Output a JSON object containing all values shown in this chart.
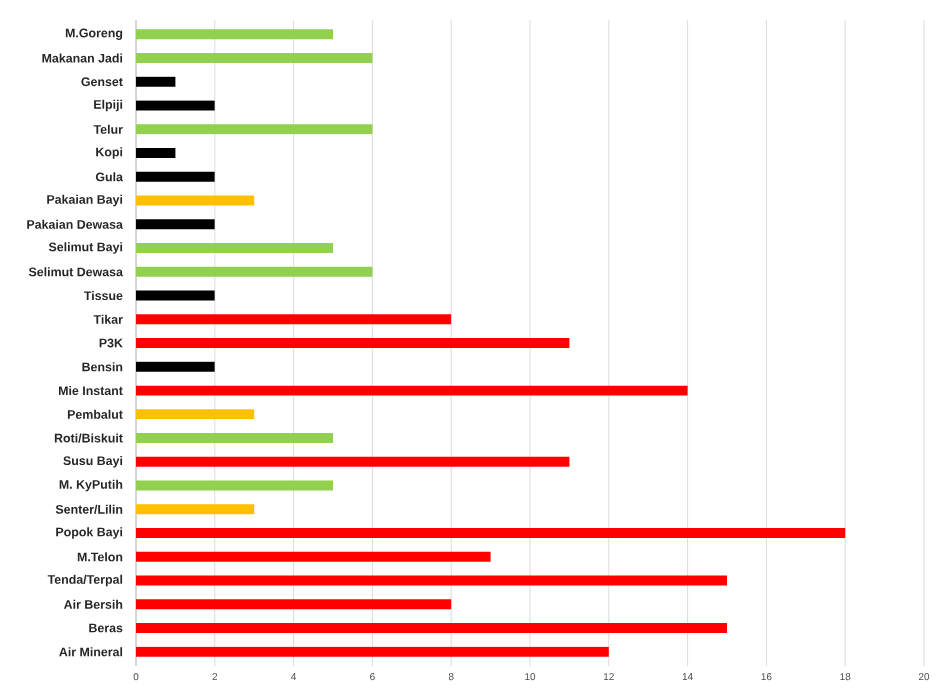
{
  "chart_data": {
    "type": "bar",
    "orientation": "horizontal",
    "categories": [
      "M.Goreng",
      "Makanan Jadi",
      "Genset",
      "Elpiji",
      "Telur",
      "Kopi",
      "Gula",
      "Pakaian Bayi",
      "Pakaian Dewasa",
      "Selimut Bayi",
      "Selimut Dewasa",
      "Tissue",
      "Tikar",
      "P3K",
      "Bensin",
      "Mie Instant",
      "Pembalut",
      "Roti/Biskuit",
      "Susu Bayi",
      "M. KyPutih",
      "Senter/Lilin",
      "Popok Bayi",
      "M.Telon",
      "Tenda/Terpal",
      "Air Bersih",
      "Beras",
      "Air Mineral"
    ],
    "values": [
      5,
      6,
      1,
      2,
      6,
      1,
      2,
      3,
      2,
      5,
      6,
      2,
      8,
      11,
      2,
      14,
      3,
      5,
      11,
      5,
      3,
      18,
      9,
      15,
      8,
      15,
      12
    ],
    "colors": [
      "#92d050",
      "#92d050",
      "#000000",
      "#000000",
      "#92d050",
      "#000000",
      "#000000",
      "#ffc000",
      "#000000",
      "#92d050",
      "#92d050",
      "#000000",
      "#ff0000",
      "#ff0000",
      "#000000",
      "#ff0000",
      "#ffc000",
      "#92d050",
      "#ff0000",
      "#92d050",
      "#ffc000",
      "#ff0000",
      "#ff0000",
      "#ff0000",
      "#ff0000",
      "#ff0000",
      "#ff0000"
    ],
    "xlim": [
      0,
      20
    ],
    "xticks": [
      0,
      2,
      4,
      6,
      8,
      10,
      12,
      14,
      16,
      18,
      20
    ],
    "grid": "x"
  }
}
